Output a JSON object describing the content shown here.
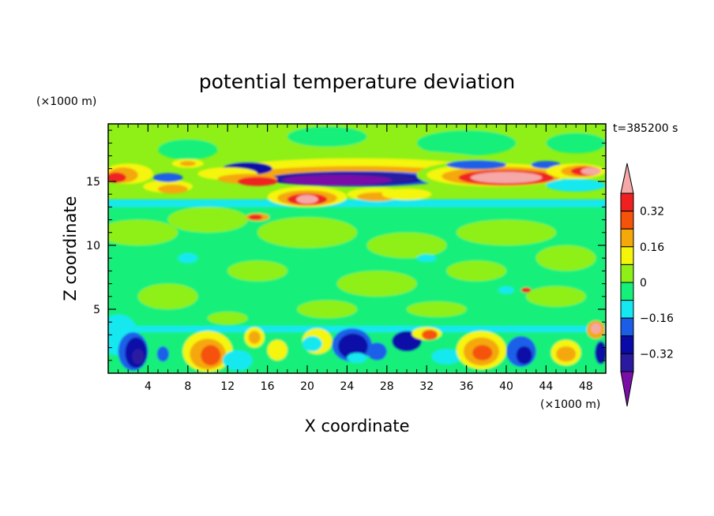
{
  "chart_data": {
    "type": "heatmap",
    "title": "potential temperature deviation",
    "xlabel": "X coordinate",
    "ylabel": "Z coordinate",
    "x_unit": "(×1000 m)",
    "y_unit": "(×1000 m)",
    "time_label": "t=385200 s",
    "xlim": [
      0,
      50
    ],
    "ylim": [
      0,
      19.5
    ],
    "x_ticks": [
      "4",
      "8",
      "12",
      "16",
      "20",
      "24",
      "28",
      "32",
      "36",
      "40",
      "44",
      "48"
    ],
    "y_ticks": [
      "5",
      "10",
      "15"
    ],
    "colorbar": {
      "tick_labels": [
        "0.32",
        "0.16",
        "0",
        "−0.16",
        "−0.32"
      ],
      "levels": [
        -0.4,
        -0.32,
        -0.24,
        -0.16,
        -0.08,
        0,
        0.08,
        0.16,
        0.24,
        0.32,
        0.4
      ],
      "colors": [
        "#7a0fa8",
        "#2a1aa0",
        "#0a0aa8",
        "#1a5ee8",
        "#14e8f0",
        "#14f07a",
        "#8ef016",
        "#f5f50a",
        "#f5a80a",
        "#f5520a",
        "#f02020",
        "#f5a8a8"
      ]
    },
    "layers": [
      {
        "z_range": [
          0,
          3.5
        ],
        "description_values": "alternating warm/cold cells near surface"
      },
      {
        "z_range": [
          3.5,
          13
        ],
        "dominant_value": 0.02
      },
      {
        "z_range": [
          13,
          17
        ],
        "dominant_value": "strong positive and negative bands around tropopause"
      },
      {
        "z_range": [
          17,
          19.5
        ],
        "dominant_value": 0.04
      }
    ]
  }
}
